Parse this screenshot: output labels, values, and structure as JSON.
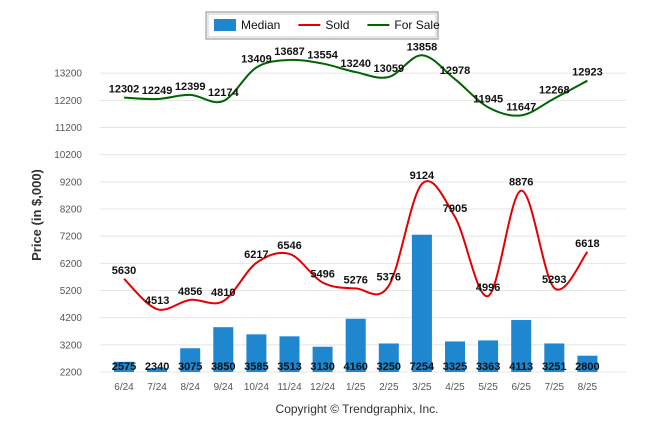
{
  "chart_data": {
    "type": "bar",
    "categories": [
      "6/24",
      "7/24",
      "8/24",
      "9/24",
      "10/24",
      "11/24",
      "12/24",
      "1/25",
      "2/25",
      "3/25",
      "4/25",
      "5/25",
      "6/25",
      "7/25",
      "8/25"
    ],
    "series": [
      {
        "name": "Median",
        "type": "bar",
        "color": "#1f86d0",
        "values": [
          2575,
          2340,
          3075,
          3850,
          3585,
          3513,
          3130,
          4160,
          3250,
          7254,
          3325,
          3363,
          4113,
          3251,
          2800
        ]
      },
      {
        "name": "Sold",
        "type": "line",
        "color": "#e30000",
        "values": [
          5630,
          4513,
          4856,
          4810,
          6217,
          6546,
          5496,
          5276,
          5376,
          9124,
          7905,
          4996,
          8876,
          5293,
          6618
        ]
      },
      {
        "name": "For Sale",
        "type": "line",
        "color": "#006400",
        "values": [
          12302,
          12249,
          12399,
          12174,
          13409,
          13687,
          13554,
          13240,
          13059,
          13858,
          12978,
          11945,
          11647,
          12268,
          12923
        ]
      }
    ],
    "ylabel": "Price (in $,000)",
    "yticks": [
      2200,
      3200,
      4200,
      5200,
      6200,
      7200,
      8200,
      9200,
      10200,
      11200,
      12200,
      13200
    ],
    "ylim": [
      2200,
      14200
    ],
    "grid": true,
    "legend_position": "top-center",
    "footer": "Copyright © Trendgraphix, Inc."
  }
}
